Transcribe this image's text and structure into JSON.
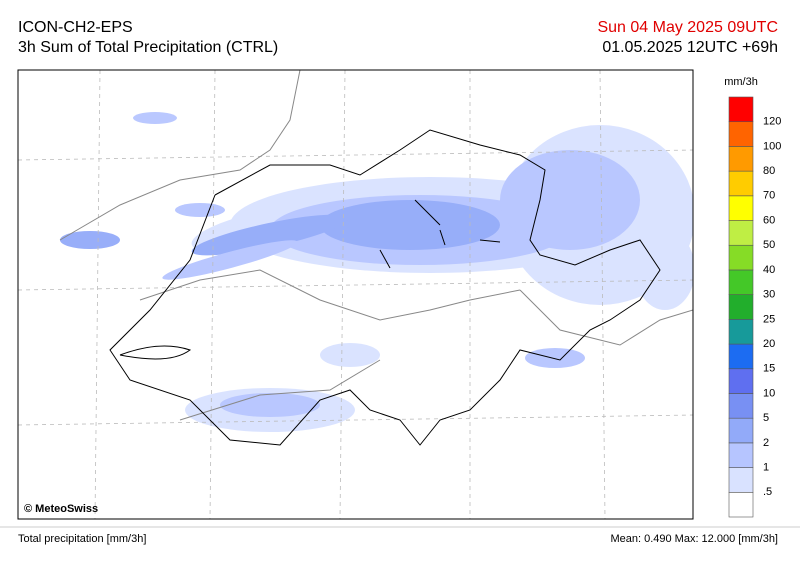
{
  "header": {
    "model": "ICON-CH2-EPS",
    "product": "3h Sum of Total Precipitation (CTRL)",
    "valid_time": "Sun 04 May 2025 09UTC",
    "run_time": "01.05.2025 12UTC +69h"
  },
  "map": {
    "credit": "© MeteoSwiss"
  },
  "legend": {
    "unit": "mm/3h",
    "labels": [
      ".5",
      "1",
      "2",
      "5",
      "10",
      "15",
      "20",
      "25",
      "30",
      "40",
      "50",
      "60",
      "70",
      "80",
      "100",
      "120"
    ],
    "colors": [
      "#ffffff",
      "#d9e2ff",
      "#b6c5ff",
      "#92aaf9",
      "#7890f3",
      "#5f6ff0",
      "#1c6cf2",
      "#179a9a",
      "#22ae2c",
      "#44c828",
      "#86dc26",
      "#bfee44",
      "#ffff00",
      "#ffcc00",
      "#ff9a00",
      "#ff6400",
      "#ff0000"
    ]
  },
  "footer": {
    "left": "Total precipitation [mm/3h]",
    "right": "Mean:  0.490 Max:  12.000 [mm/3h]"
  }
}
